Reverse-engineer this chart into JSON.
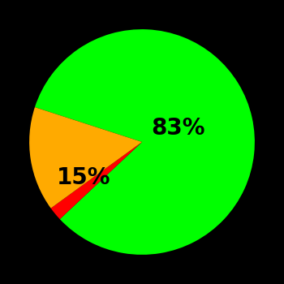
{
  "slices": [
    83,
    2,
    15
  ],
  "colors": [
    "#00ff00",
    "#ff0000",
    "#ffaa00"
  ],
  "labels": [
    "83%",
    "",
    "15%"
  ],
  "label_colors": [
    "#000000",
    "#000000",
    "#000000"
  ],
  "background_color": "#000000",
  "startangle": 162,
  "figsize": [
    3.5,
    3.5
  ],
  "dpi": 100,
  "label_positions": [
    [
      0.32,
      0.12
    ],
    [
      null,
      null
    ],
    [
      -0.52,
      -0.32
    ]
  ],
  "label_fontsize": 20
}
